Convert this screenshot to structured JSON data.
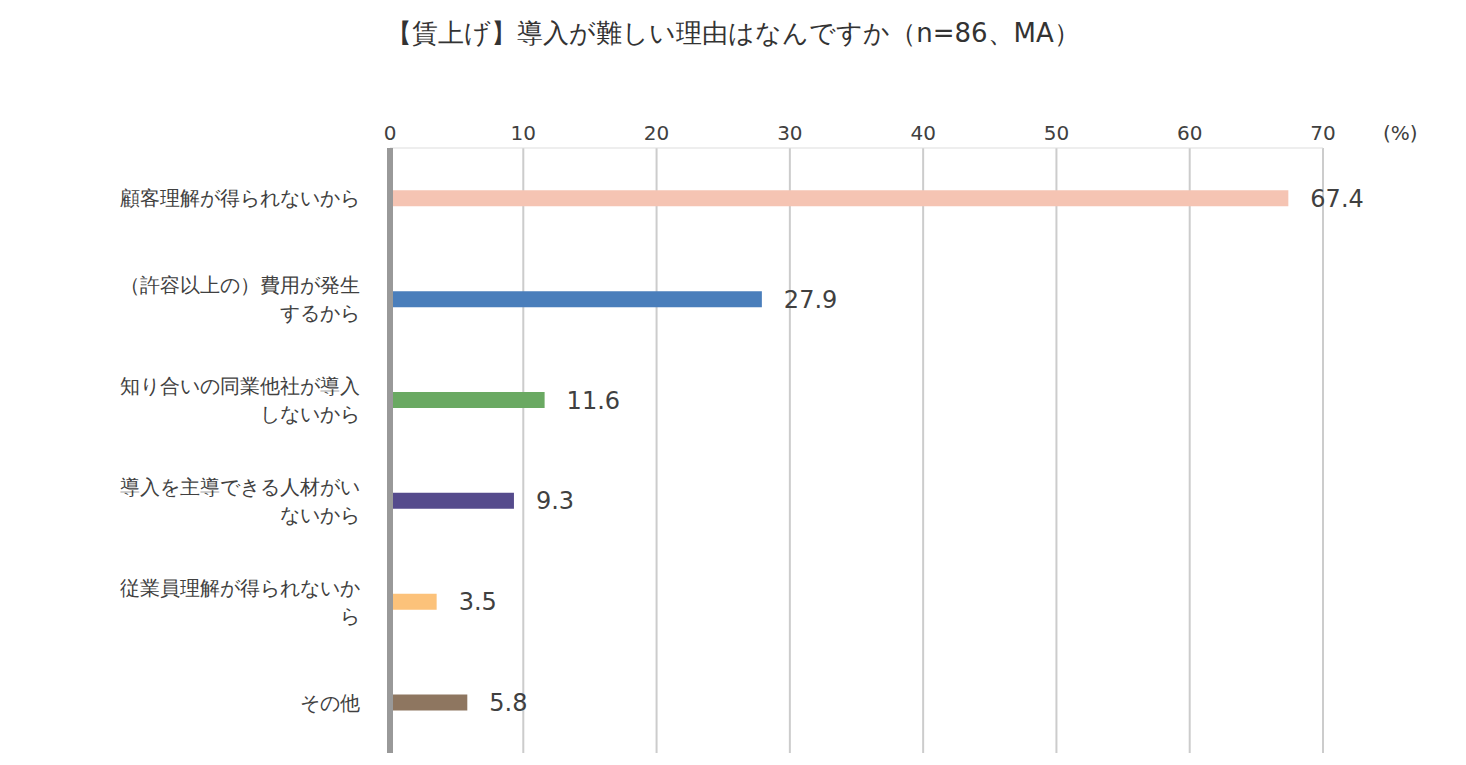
{
  "chart_data": {
    "type": "bar",
    "orientation": "horizontal",
    "title": "【賃上げ】導入が難しい理由はなんですか（n=86、MA）",
    "x_label": "(%)",
    "categories": [
      "顧客理解が得られないから",
      "（許容以上の）費用が発生するから",
      "知り合いの同業他社が導入しないから",
      "導入を主導できる人材がいないから",
      "従業員理解が得られないから",
      "その他"
    ],
    "values": [
      67.4,
      27.9,
      11.6,
      9.3,
      3.5,
      5.8
    ],
    "colors": [
      "#f5c4b3",
      "#4a7ebb",
      "#6aa962",
      "#554b8c",
      "#fcc27a",
      "#8e7660"
    ],
    "xlim": [
      0,
      70
    ],
    "xticks": [
      0,
      10,
      20,
      30,
      40,
      50,
      60,
      70
    ],
    "grid": true,
    "data_labels": true
  }
}
